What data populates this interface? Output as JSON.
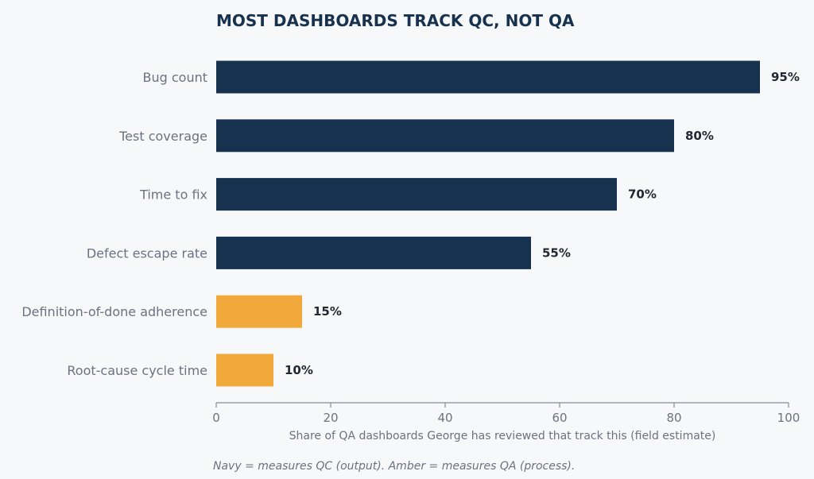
{
  "chart_data": {
    "type": "bar",
    "orientation": "horizontal",
    "title": "MOST DASHBOARDS TRACK QC, NOT QA",
    "categories": [
      "Bug count",
      "Test coverage",
      "Time to fix",
      "Defect escape rate",
      "Definition-of-done adherence",
      "Root-cause cycle time"
    ],
    "values": [
      95,
      80,
      70,
      55,
      15,
      10
    ],
    "value_labels": [
      "95%",
      "80%",
      "70%",
      "55%",
      "15%",
      "10%"
    ],
    "bar_groups": [
      "QC",
      "QC",
      "QC",
      "QC",
      "QA",
      "QA"
    ],
    "colors": {
      "QC": "#17324f",
      "QA": "#f2a93b"
    },
    "xlabel": "Share of QA dashboards George has reviewed that track this (field estimate)",
    "ylabel": "",
    "xlim": [
      0,
      100
    ],
    "xticks": [
      0,
      20,
      40,
      60,
      80,
      100
    ],
    "xtick_labels": [
      "0",
      "20",
      "40",
      "60",
      "80",
      "100"
    ],
    "grid": false,
    "legend": "none",
    "footnote": "Navy = measures QC (output). Amber = measures QA (process)."
  }
}
